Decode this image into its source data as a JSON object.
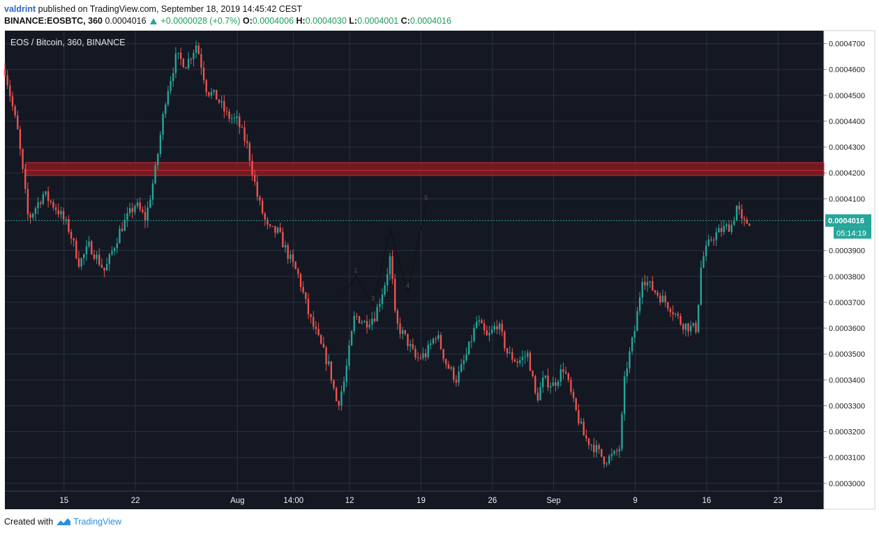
{
  "header": {
    "user": "valdrint",
    "published_text": "published on TradingView.com, September 18, 2019 14:45:42 CEST",
    "symbol_line": "BINANCE:EOSBTC, 360",
    "last": "0.0004016",
    "change": "+0.0000028 (+0.7%)",
    "o_label": "O:",
    "o": "0.0004006",
    "h_label": "H:",
    "h": "0.0004030",
    "l_label": "L:",
    "l": "0.0004001",
    "c_label": "C:",
    "c": "0.0004016"
  },
  "legend": {
    "title": "EOS / Bitcoin, 360, BINANCE"
  },
  "footer": {
    "created_with": "Created with",
    "brand": "TradingView"
  },
  "colors": {
    "background": "#141823",
    "grid": "#2b3140",
    "up": "#26a69a",
    "down": "#ef5350",
    "resistance_zone": "#8b1a22",
    "price_line": "#26a69a"
  },
  "chart_data": {
    "type": "candlestick",
    "title": "EOS / Bitcoin, 360, BINANCE",
    "ylim": [
      0.000297,
      0.000475
    ],
    "y_ticks": [
      "0.0004700",
      "0.0004600",
      "0.0004500",
      "0.0004400",
      "0.0004300",
      "0.0004200",
      "0.0004100",
      "0.0003900",
      "0.0003800",
      "0.0003700",
      "0.0003600",
      "0.0003500",
      "0.0003400",
      "0.0003300",
      "0.0003200",
      "0.0003100",
      "0.0003000"
    ],
    "x_ticks": [
      {
        "label": "15",
        "day": 15
      },
      {
        "label": "22",
        "day": 22
      },
      {
        "label": "Aug",
        "day": 32
      },
      {
        "label": "14:00",
        "day": 37.5
      },
      {
        "label": "12",
        "day": 43
      },
      {
        "label": "19",
        "day": 50
      },
      {
        "label": "26",
        "day": 57
      },
      {
        "label": "Sep",
        "day": 63
      },
      {
        "label": "9",
        "day": 71
      },
      {
        "label": "16",
        "day": 78
      },
      {
        "label": "23",
        "day": 85
      }
    ],
    "xlim": [
      9.2,
      89.5
    ],
    "current_price": "0.0004016",
    "countdown": "05:14:19",
    "resistance_zone": [
      0.000419,
      0.000424
    ],
    "annotation_labels": [
      "1",
      "3",
      "4",
      "5"
    ],
    "wave_points": [
      {
        "day": 42.4,
        "price": 0.000373
      },
      {
        "day": 43.6,
        "price": 0.00038
      },
      {
        "day": 45.3,
        "price": 0.000369
      },
      {
        "day": 47.0,
        "price": 0.000398
      },
      {
        "day": 48.7,
        "price": 0.000374
      },
      {
        "day": 50.5,
        "price": 0.000408
      }
    ],
    "anchors": [
      {
        "day": 9.2,
        "price": 0.00046
      },
      {
        "day": 10.5,
        "price": 0.000435
      },
      {
        "day": 11.5,
        "price": 0.000402
      },
      {
        "day": 13.0,
        "price": 0.000412
      },
      {
        "day": 14.5,
        "price": 0.000405
      },
      {
        "day": 15.5,
        "price": 0.000398
      },
      {
        "day": 16.5,
        "price": 0.000385
      },
      {
        "day": 17.5,
        "price": 0.000392
      },
      {
        "day": 19.0,
        "price": 0.000382
      },
      {
        "day": 20.5,
        "price": 0.000398
      },
      {
        "day": 22.0,
        "price": 0.000408
      },
      {
        "day": 23.0,
        "price": 0.000402
      },
      {
        "day": 24.0,
        "price": 0.000422
      },
      {
        "day": 25.0,
        "price": 0.00045
      },
      {
        "day": 26.0,
        "price": 0.000465
      },
      {
        "day": 27.0,
        "price": 0.000462
      },
      {
        "day": 28.0,
        "price": 0.00047
      },
      {
        "day": 29.0,
        "price": 0.000452
      },
      {
        "day": 30.0,
        "price": 0.000449
      },
      {
        "day": 31.0,
        "price": 0.000442
      },
      {
        "day": 32.0,
        "price": 0.00044
      },
      {
        "day": 33.0,
        "price": 0.00043
      },
      {
        "day": 34.0,
        "price": 0.00041
      },
      {
        "day": 35.0,
        "price": 0.000398
      },
      {
        "day": 36.0,
        "price": 0.000397
      },
      {
        "day": 37.0,
        "price": 0.000388
      },
      {
        "day": 38.0,
        "price": 0.00038
      },
      {
        "day": 39.0,
        "price": 0.000365
      },
      {
        "day": 40.0,
        "price": 0.000355
      },
      {
        "day": 41.0,
        "price": 0.000345
      },
      {
        "day": 41.8,
        "price": 0.00033
      },
      {
        "day": 42.5,
        "price": 0.00034
      },
      {
        "day": 43.5,
        "price": 0.000365
      },
      {
        "day": 44.5,
        "price": 0.000362
      },
      {
        "day": 45.5,
        "price": 0.000365
      },
      {
        "day": 46.5,
        "price": 0.000378
      },
      {
        "day": 47.0,
        "price": 0.000388
      },
      {
        "day": 47.5,
        "price": 0.000362
      },
      {
        "day": 48.5,
        "price": 0.000356
      },
      {
        "day": 49.5,
        "price": 0.000348
      },
      {
        "day": 50.5,
        "price": 0.00035
      },
      {
        "day": 51.5,
        "price": 0.000358
      },
      {
        "day": 52.5,
        "price": 0.000346
      },
      {
        "day": 53.5,
        "price": 0.00034
      },
      {
        "day": 54.5,
        "price": 0.00035
      },
      {
        "day": 55.5,
        "price": 0.000363
      },
      {
        "day": 56.5,
        "price": 0.000356
      },
      {
        "day": 57.5,
        "price": 0.000362
      },
      {
        "day": 58.5,
        "price": 0.00035
      },
      {
        "day": 59.5,
        "price": 0.000347
      },
      {
        "day": 60.5,
        "price": 0.00035
      },
      {
        "day": 61.3,
        "price": 0.000332
      },
      {
        "day": 62.0,
        "price": 0.00034
      },
      {
        "day": 63.0,
        "price": 0.000338
      },
      {
        "day": 64.0,
        "price": 0.000345
      },
      {
        "day": 65.0,
        "price": 0.00033
      },
      {
        "day": 66.0,
        "price": 0.000318
      },
      {
        "day": 67.0,
        "price": 0.000314
      },
      {
        "day": 68.0,
        "price": 0.000309
      },
      {
        "day": 69.0,
        "price": 0.000311
      },
      {
        "day": 69.5,
        "price": 0.000314
      },
      {
        "day": 70.0,
        "price": 0.000342
      },
      {
        "day": 71.0,
        "price": 0.00036
      },
      {
        "day": 71.7,
        "price": 0.00038
      },
      {
        "day": 72.5,
        "price": 0.000376
      },
      {
        "day": 73.5,
        "price": 0.000372
      },
      {
        "day": 74.5,
        "price": 0.000368
      },
      {
        "day": 75.5,
        "price": 0.000362
      },
      {
        "day": 76.5,
        "price": 0.00036
      },
      {
        "day": 77.0,
        "price": 0.00036
      },
      {
        "day": 77.5,
        "price": 0.000386
      },
      {
        "day": 78.5,
        "price": 0.000395
      },
      {
        "day": 79.5,
        "price": 0.000398
      },
      {
        "day": 80.5,
        "price": 0.0004
      },
      {
        "day": 81.0,
        "price": 0.000408
      },
      {
        "day": 81.5,
        "price": 0.0004
      },
      {
        "day": 82.3,
        "price": 0.0004016
      }
    ]
  }
}
